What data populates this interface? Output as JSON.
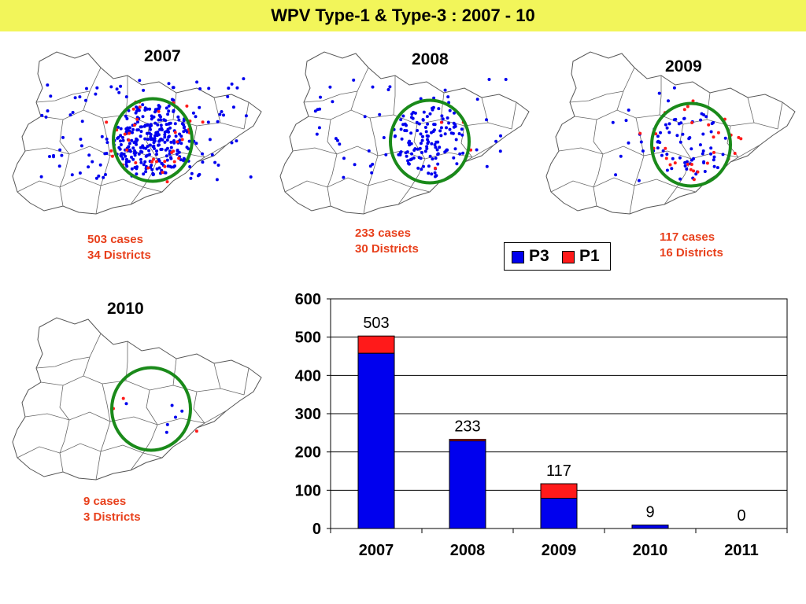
{
  "slide_title": "WPV Type-1 & Type-3 : 2007 - 10",
  "maps": [
    {
      "year": "2007",
      "cases": "503 cases",
      "districts": "34 Districts"
    },
    {
      "year": "2008",
      "cases": "233 cases",
      "districts": "30 Districts"
    },
    {
      "year": "2009",
      "cases": "117 cases",
      "districts": "16 Districts"
    },
    {
      "year": "2010",
      "cases": "9 cases",
      "districts": "3 Districts"
    }
  ],
  "colors": {
    "P3": "#0000ee",
    "P1": "#ff1a1a",
    "circle": "#1a8a1a",
    "caption": "#e8401c",
    "title_bg": "#f2f55a"
  },
  "legend": {
    "p3_label": "P3",
    "p1_label": "P1"
  },
  "chart_data": {
    "type": "bar",
    "stacked": true,
    "categories": [
      "2007",
      "2008",
      "2009",
      "2010",
      "2011"
    ],
    "series": [
      {
        "name": "P3",
        "values": [
          458,
          229,
          79,
          9,
          0
        ]
      },
      {
        "name": "P1",
        "values": [
          45,
          4,
          38,
          0,
          0
        ]
      }
    ],
    "totals": [
      "503",
      "233",
      "117",
      "9",
      "0"
    ],
    "ylim": [
      0,
      600
    ],
    "yticks": [
      "0",
      "100",
      "200",
      "300",
      "400",
      "500",
      "600"
    ],
    "grid": true,
    "legend_position": "top-right"
  }
}
